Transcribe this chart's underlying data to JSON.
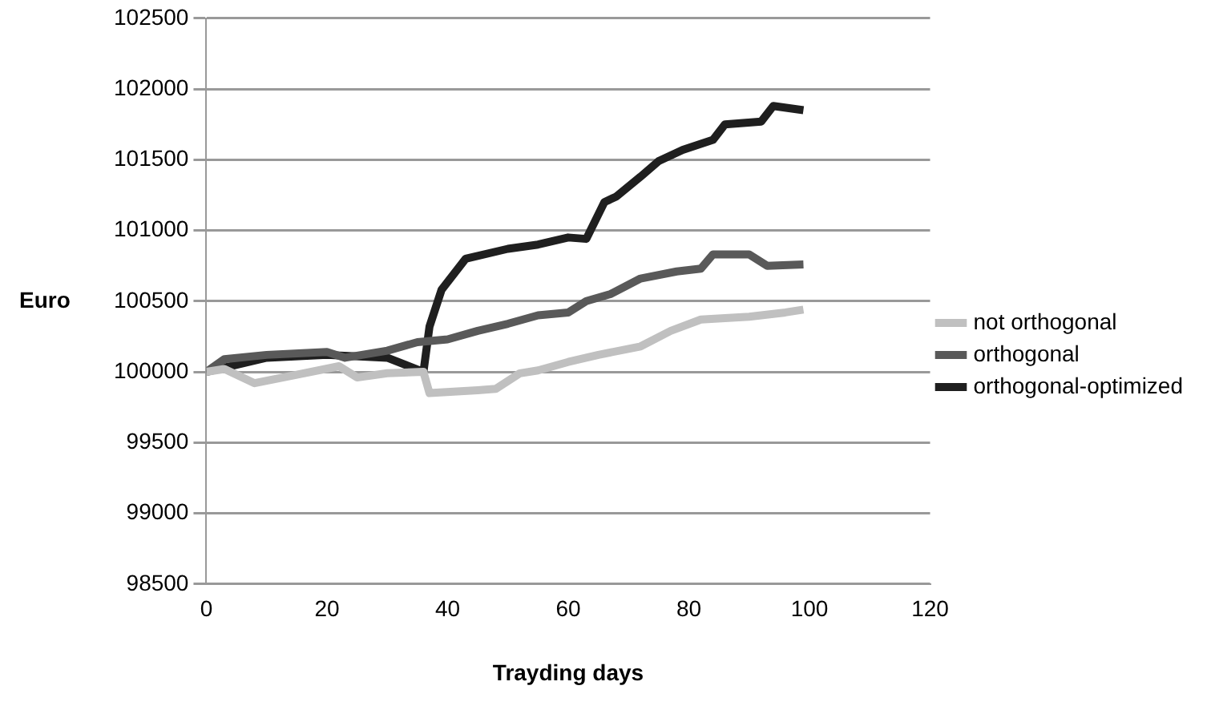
{
  "chart_data": {
    "type": "line",
    "xlabel": "Trayding days",
    "ylabel": "Euro",
    "xlim": [
      0,
      120
    ],
    "xticks": [
      0,
      20,
      40,
      60,
      80,
      100,
      120
    ],
    "ylim": [
      98500,
      102500
    ],
    "yticks": [
      98500,
      99000,
      99500,
      100000,
      100500,
      101000,
      101500,
      102000,
      102500
    ],
    "grid": "y",
    "legend": "right",
    "marker": "none",
    "line_style": "solid",
    "series": [
      {
        "name": "not orthogonal",
        "color": "#c0c0c0",
        "x": [
          0,
          3,
          8,
          15,
          22,
          25,
          30,
          36,
          37,
          45,
          48,
          52,
          55,
          60,
          65,
          72,
          77,
          82,
          90,
          96,
          99
        ],
        "values": [
          100000,
          100020,
          99920,
          99980,
          100040,
          99960,
          99990,
          100000,
          99850,
          99870,
          99880,
          99990,
          100010,
          100070,
          100120,
          100180,
          100290,
          100370,
          100390,
          100420,
          100440
        ]
      },
      {
        "name": "orthogonal",
        "color": "#595959",
        "x": [
          0,
          3,
          10,
          20,
          23,
          30,
          35,
          40,
          45,
          50,
          55,
          60,
          63,
          67,
          72,
          78,
          82,
          84,
          90,
          93,
          99
        ],
        "values": [
          100000,
          100090,
          100120,
          100140,
          100100,
          100150,
          100210,
          100230,
          100290,
          100340,
          100400,
          100420,
          100500,
          100550,
          100660,
          100710,
          100730,
          100830,
          100830,
          100750,
          100760
        ]
      },
      {
        "name": "orthogonal-optimized",
        "color": "#1f1f1f",
        "x": [
          0,
          10,
          20,
          30,
          36,
          37,
          39,
          43,
          50,
          55,
          60,
          63,
          66,
          68,
          72,
          75,
          79,
          84,
          86,
          92,
          94,
          99
        ],
        "values": [
          100000,
          100100,
          100120,
          100100,
          100000,
          100320,
          100580,
          100800,
          100870,
          100900,
          100950,
          100940,
          101200,
          101240,
          101380,
          101490,
          101570,
          101640,
          101750,
          101770,
          101880,
          101850
        ]
      }
    ]
  }
}
